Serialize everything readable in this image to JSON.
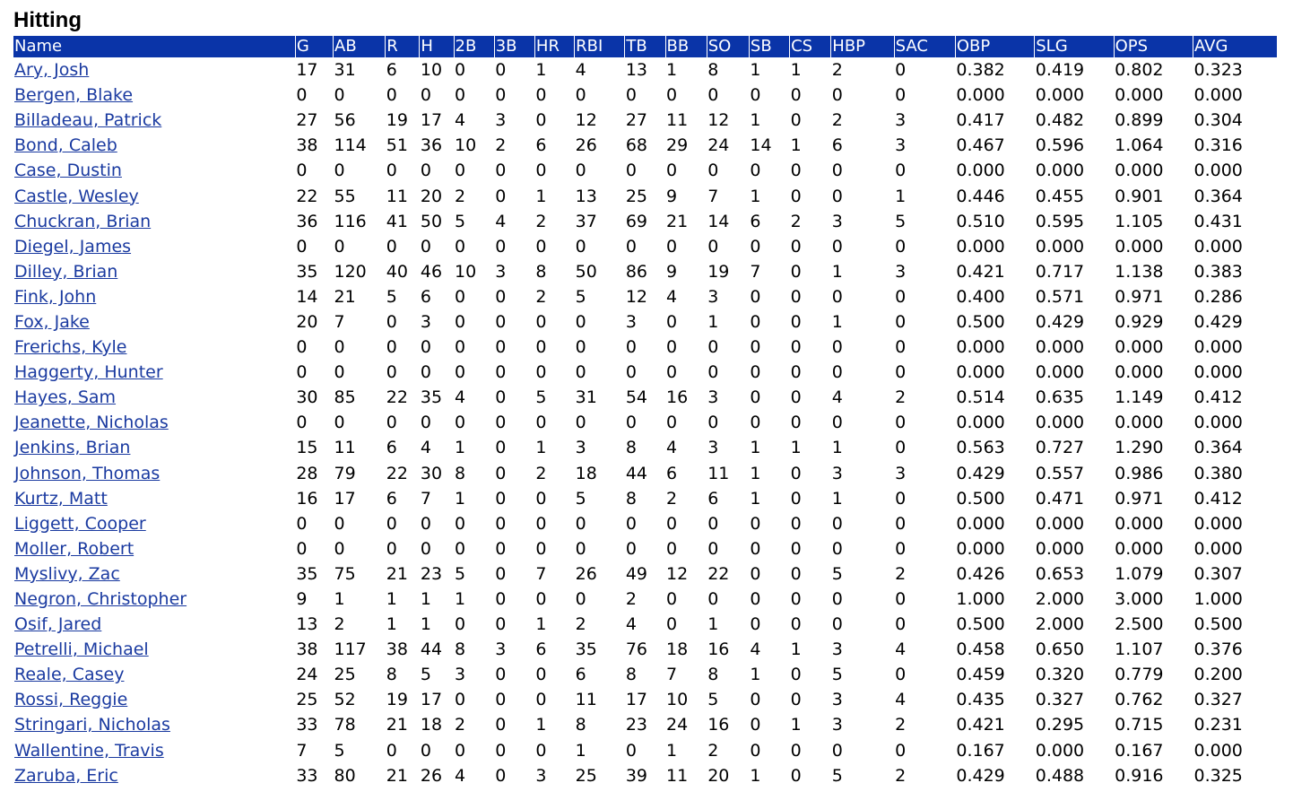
{
  "page": {
    "title": "Hitting"
  },
  "colors": {
    "header_bg": "#0a34a8",
    "header_text": "#ffffff",
    "link": "#1a3aa0"
  },
  "table": {
    "columns": [
      "Name",
      "G",
      "AB",
      "R",
      "H",
      "2B",
      "3B",
      "HR",
      "RBI",
      "TB",
      "BB",
      "SO",
      "SB",
      "CS",
      "HBP",
      "SAC",
      "OBP",
      "SLG",
      "OPS",
      "AVG"
    ],
    "rows": [
      [
        "Ary, Josh",
        "17",
        "31",
        "6",
        "10",
        "0",
        "0",
        "1",
        "4",
        "13",
        "1",
        "8",
        "1",
        "1",
        "2",
        "0",
        "0.382",
        "0.419",
        "0.802",
        "0.323"
      ],
      [
        "Bergen, Blake",
        "0",
        "0",
        "0",
        "0",
        "0",
        "0",
        "0",
        "0",
        "0",
        "0",
        "0",
        "0",
        "0",
        "0",
        "0",
        "0.000",
        "0.000",
        "0.000",
        "0.000"
      ],
      [
        "Billadeau, Patrick",
        "27",
        "56",
        "19",
        "17",
        "4",
        "3",
        "0",
        "12",
        "27",
        "11",
        "12",
        "1",
        "0",
        "2",
        "3",
        "0.417",
        "0.482",
        "0.899",
        "0.304"
      ],
      [
        "Bond, Caleb",
        "38",
        "114",
        "51",
        "36",
        "10",
        "2",
        "6",
        "26",
        "68",
        "29",
        "24",
        "14",
        "1",
        "6",
        "3",
        "0.467",
        "0.596",
        "1.064",
        "0.316"
      ],
      [
        "Case, Dustin",
        "0",
        "0",
        "0",
        "0",
        "0",
        "0",
        "0",
        "0",
        "0",
        "0",
        "0",
        "0",
        "0",
        "0",
        "0",
        "0.000",
        "0.000",
        "0.000",
        "0.000"
      ],
      [
        "Castle, Wesley",
        "22",
        "55",
        "11",
        "20",
        "2",
        "0",
        "1",
        "13",
        "25",
        "9",
        "7",
        "1",
        "0",
        "0",
        "1",
        "0.446",
        "0.455",
        "0.901",
        "0.364"
      ],
      [
        "Chuckran, Brian",
        "36",
        "116",
        "41",
        "50",
        "5",
        "4",
        "2",
        "37",
        "69",
        "21",
        "14",
        "6",
        "2",
        "3",
        "5",
        "0.510",
        "0.595",
        "1.105",
        "0.431"
      ],
      [
        "Diegel, James",
        "0",
        "0",
        "0",
        "0",
        "0",
        "0",
        "0",
        "0",
        "0",
        "0",
        "0",
        "0",
        "0",
        "0",
        "0",
        "0.000",
        "0.000",
        "0.000",
        "0.000"
      ],
      [
        "Dilley, Brian",
        "35",
        "120",
        "40",
        "46",
        "10",
        "3",
        "8",
        "50",
        "86",
        "9",
        "19",
        "7",
        "0",
        "1",
        "3",
        "0.421",
        "0.717",
        "1.138",
        "0.383"
      ],
      [
        "Fink, John",
        "14",
        "21",
        "5",
        "6",
        "0",
        "0",
        "2",
        "5",
        "12",
        "4",
        "3",
        "0",
        "0",
        "0",
        "0",
        "0.400",
        "0.571",
        "0.971",
        "0.286"
      ],
      [
        "Fox, Jake",
        "20",
        "7",
        "0",
        "3",
        "0",
        "0",
        "0",
        "0",
        "3",
        "0",
        "1",
        "0",
        "0",
        "1",
        "0",
        "0.500",
        "0.429",
        "0.929",
        "0.429"
      ],
      [
        "Frerichs, Kyle",
        "0",
        "0",
        "0",
        "0",
        "0",
        "0",
        "0",
        "0",
        "0",
        "0",
        "0",
        "0",
        "0",
        "0",
        "0",
        "0.000",
        "0.000",
        "0.000",
        "0.000"
      ],
      [
        "Haggerty, Hunter",
        "0",
        "0",
        "0",
        "0",
        "0",
        "0",
        "0",
        "0",
        "0",
        "0",
        "0",
        "0",
        "0",
        "0",
        "0",
        "0.000",
        "0.000",
        "0.000",
        "0.000"
      ],
      [
        "Hayes, Sam",
        "30",
        "85",
        "22",
        "35",
        "4",
        "0",
        "5",
        "31",
        "54",
        "16",
        "3",
        "0",
        "0",
        "4",
        "2",
        "0.514",
        "0.635",
        "1.149",
        "0.412"
      ],
      [
        "Jeanette, Nicholas",
        "0",
        "0",
        "0",
        "0",
        "0",
        "0",
        "0",
        "0",
        "0",
        "0",
        "0",
        "0",
        "0",
        "0",
        "0",
        "0.000",
        "0.000",
        "0.000",
        "0.000"
      ],
      [
        "Jenkins, Brian",
        "15",
        "11",
        "6",
        "4",
        "1",
        "0",
        "1",
        "3",
        "8",
        "4",
        "3",
        "1",
        "1",
        "1",
        "0",
        "0.563",
        "0.727",
        "1.290",
        "0.364"
      ],
      [
        "Johnson, Thomas",
        "28",
        "79",
        "22",
        "30",
        "8",
        "0",
        "2",
        "18",
        "44",
        "6",
        "11",
        "1",
        "0",
        "3",
        "3",
        "0.429",
        "0.557",
        "0.986",
        "0.380"
      ],
      [
        "Kurtz, Matt",
        "16",
        "17",
        "6",
        "7",
        "1",
        "0",
        "0",
        "5",
        "8",
        "2",
        "6",
        "1",
        "0",
        "1",
        "0",
        "0.500",
        "0.471",
        "0.971",
        "0.412"
      ],
      [
        "Liggett, Cooper",
        "0",
        "0",
        "0",
        "0",
        "0",
        "0",
        "0",
        "0",
        "0",
        "0",
        "0",
        "0",
        "0",
        "0",
        "0",
        "0.000",
        "0.000",
        "0.000",
        "0.000"
      ],
      [
        "Moller, Robert",
        "0",
        "0",
        "0",
        "0",
        "0",
        "0",
        "0",
        "0",
        "0",
        "0",
        "0",
        "0",
        "0",
        "0",
        "0",
        "0.000",
        "0.000",
        "0.000",
        "0.000"
      ],
      [
        "Myslivy, Zac",
        "35",
        "75",
        "21",
        "23",
        "5",
        "0",
        "7",
        "26",
        "49",
        "12",
        "22",
        "0",
        "0",
        "5",
        "2",
        "0.426",
        "0.653",
        "1.079",
        "0.307"
      ],
      [
        "Negron, Christopher",
        "9",
        "1",
        "1",
        "1",
        "1",
        "0",
        "0",
        "0",
        "2",
        "0",
        "0",
        "0",
        "0",
        "0",
        "0",
        "1.000",
        "2.000",
        "3.000",
        "1.000"
      ],
      [
        "Osif, Jared",
        "13",
        "2",
        "1",
        "1",
        "0",
        "0",
        "1",
        "2",
        "4",
        "0",
        "1",
        "0",
        "0",
        "0",
        "0",
        "0.500",
        "2.000",
        "2.500",
        "0.500"
      ],
      [
        "Petrelli, Michael",
        "38",
        "117",
        "38",
        "44",
        "8",
        "3",
        "6",
        "35",
        "76",
        "18",
        "16",
        "4",
        "1",
        "3",
        "4",
        "0.458",
        "0.650",
        "1.107",
        "0.376"
      ],
      [
        "Reale, Casey",
        "24",
        "25",
        "8",
        "5",
        "3",
        "0",
        "0",
        "6",
        "8",
        "7",
        "8",
        "1",
        "0",
        "5",
        "0",
        "0.459",
        "0.320",
        "0.779",
        "0.200"
      ],
      [
        "Rossi, Reggie",
        "25",
        "52",
        "19",
        "17",
        "0",
        "0",
        "0",
        "11",
        "17",
        "10",
        "5",
        "0",
        "0",
        "3",
        "4",
        "0.435",
        "0.327",
        "0.762",
        "0.327"
      ],
      [
        "Stringari, Nicholas",
        "33",
        "78",
        "21",
        "18",
        "2",
        "0",
        "1",
        "8",
        "23",
        "24",
        "16",
        "0",
        "1",
        "3",
        "2",
        "0.421",
        "0.295",
        "0.715",
        "0.231"
      ],
      [
        "Wallentine, Travis",
        "7",
        "5",
        "0",
        "0",
        "0",
        "0",
        "0",
        "1",
        "0",
        "1",
        "2",
        "0",
        "0",
        "0",
        "0",
        "0.167",
        "0.000",
        "0.167",
        "0.000"
      ],
      [
        "Zaruba, Eric",
        "33",
        "80",
        "21",
        "26",
        "4",
        "0",
        "3",
        "25",
        "39",
        "11",
        "20",
        "1",
        "0",
        "5",
        "2",
        "0.429",
        "0.488",
        "0.916",
        "0.325"
      ]
    ]
  }
}
